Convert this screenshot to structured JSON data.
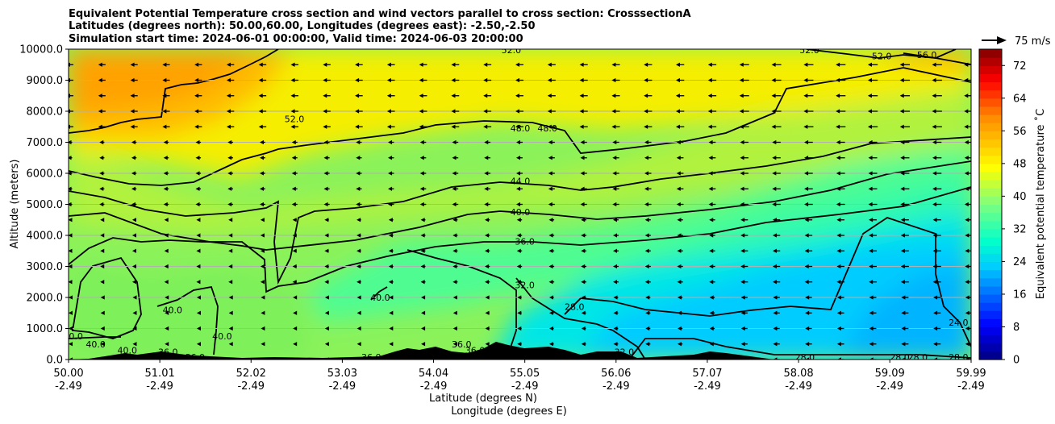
{
  "chart_data": {
    "type": "contour",
    "title_lines": [
      "Equivalent Potential Temperature cross section and wind vectors parallel to cross section: CrosssectionA",
      "Latitudes (degrees north): 50.00,60.00, Longitudes (degrees east): -2.50,-2.50",
      "Simulation start time: 2024-06-01 00:00:00, Valid time: 2024-06-03 20:00:00"
    ],
    "ylabel": "Altitude (meters)",
    "xlabel_1": "Latitude (degrees N)",
    "xlabel_2": "Longitude (degrees E)",
    "x_range": [
      50.0,
      59.99
    ],
    "y_range": [
      0,
      10000
    ],
    "x_ticks": [
      {
        "lat": "50.00",
        "lon": "-2.49",
        "value": 50.0
      },
      {
        "lat": "51.01",
        "lon": "-2.49",
        "value": 51.01
      },
      {
        "lat": "52.02",
        "lon": "-2.49",
        "value": 52.02
      },
      {
        "lat": "53.03",
        "lon": "-2.49",
        "value": 53.03
      },
      {
        "lat": "54.04",
        "lon": "-2.49",
        "value": 54.04
      },
      {
        "lat": "55.05",
        "lon": "-2.49",
        "value": 55.05
      },
      {
        "lat": "56.06",
        "lon": "-2.49",
        "value": 56.06
      },
      {
        "lat": "57.07",
        "lon": "-2.49",
        "value": 57.07
      },
      {
        "lat": "58.08",
        "lon": "-2.49",
        "value": 58.08
      },
      {
        "lat": "59.09",
        "lon": "-2.49",
        "value": 59.09
      },
      {
        "lat": "59.99",
        "lon": "-2.49",
        "value": 59.99
      }
    ],
    "y_ticks": [
      "0.0",
      "1000.0",
      "2000.0",
      "3000.0",
      "4000.0",
      "5000.0",
      "6000.0",
      "7000.0",
      "8000.0",
      "9000.0",
      "10000.0"
    ],
    "horizontal_grid": true,
    "colorbar": {
      "label": "Equivalent potential temperature ˚C",
      "range": [
        0,
        76
      ],
      "ticks": [
        "0",
        "8",
        "16",
        "24",
        "32",
        "40",
        "48",
        "56",
        "64",
        "72"
      ]
    },
    "quiver_key": "75 m/s",
    "contour_labels": [
      {
        "text": "52.0",
        "x": 54.9,
        "y": 9980
      },
      {
        "text": "52.0",
        "x": 58.2,
        "y": 9980
      },
      {
        "text": "52.0",
        "x": 59.0,
        "y": 9780
      },
      {
        "text": "56.0",
        "x": 59.5,
        "y": 9820
      },
      {
        "text": "52.0",
        "x": 52.5,
        "y": 7750
      },
      {
        "text": "48.0",
        "x": 55.0,
        "y": 7450
      },
      {
        "text": "48.0",
        "x": 55.3,
        "y": 7450
      },
      {
        "text": "44.0",
        "x": 55.0,
        "y": 5750
      },
      {
        "text": "40.0",
        "x": 55.0,
        "y": 4750
      },
      {
        "text": "36.0",
        "x": 55.05,
        "y": 3800
      },
      {
        "text": "32.0",
        "x": 55.05,
        "y": 2400
      },
      {
        "text": "28.0",
        "x": 55.6,
        "y": 1700
      },
      {
        "text": "40.0",
        "x": 51.15,
        "y": 1600
      },
      {
        "text": "40.0",
        "x": 53.45,
        "y": 2000
      },
      {
        "text": "40.0",
        "x": 51.7,
        "y": 750
      },
      {
        "text": "40.0",
        "x": 50.05,
        "y": 750
      },
      {
        "text": "40.0",
        "x": 50.3,
        "y": 500
      },
      {
        "text": "40.0",
        "x": 50.65,
        "y": 300
      },
      {
        "text": "36.0",
        "x": 51.1,
        "y": 250
      },
      {
        "text": "36.0",
        "x": 51.4,
        "y": 80
      },
      {
        "text": "36.0",
        "x": 53.35,
        "y": 80
      },
      {
        "text": "36.0",
        "x": 54.35,
        "y": 500
      },
      {
        "text": "36.0",
        "x": 54.5,
        "y": 300
      },
      {
        "text": "32.0",
        "x": 56.15,
        "y": 250
      },
      {
        "text": "28.0",
        "x": 58.15,
        "y": 80
      },
      {
        "text": "28.0",
        "x": 59.4,
        "y": 80
      },
      {
        "text": "28.0",
        "x": 59.2,
        "y": 80
      },
      {
        "text": "28.0",
        "x": 59.85,
        "y": 80
      },
      {
        "text": "24.0",
        "x": 59.85,
        "y": 1200
      }
    ]
  }
}
